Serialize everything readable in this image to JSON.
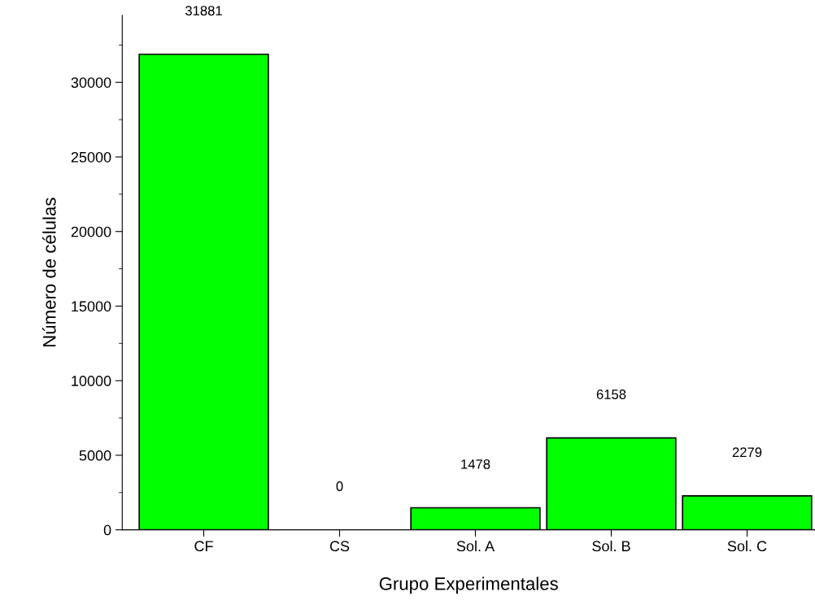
{
  "chart_data": {
    "type": "bar",
    "xlabel": "Grupo Experimentales",
    "ylabel": "Número de células",
    "categories": [
      "CF",
      "CS",
      "Sol. A",
      "Sol. B",
      "Sol. C"
    ],
    "values": [
      31881,
      0,
      1478,
      6158,
      2279
    ],
    "color": "#00ff00",
    "ylim": [
      0,
      34500
    ],
    "yticks": [
      0,
      5000,
      10000,
      15000,
      20000,
      25000,
      30000
    ],
    "data_labels": true,
    "grid": false,
    "legend": false
  }
}
